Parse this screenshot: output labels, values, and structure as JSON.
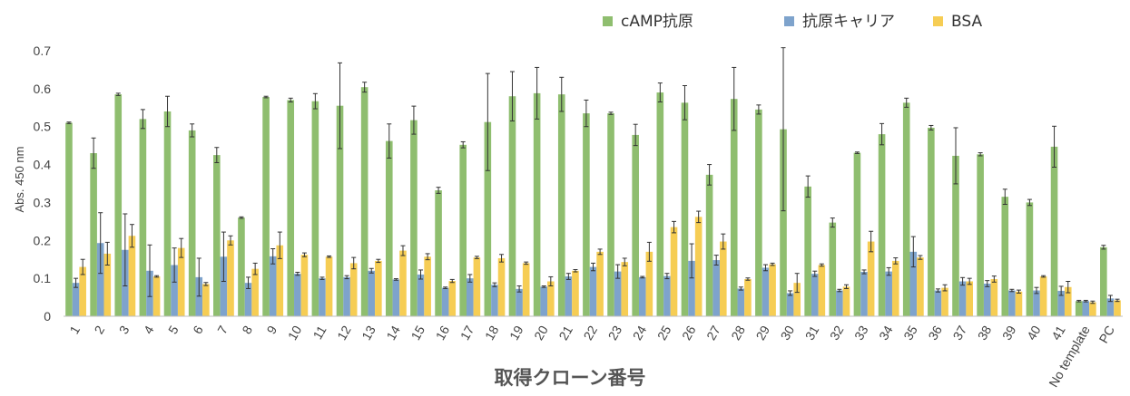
{
  "chart_data": {
    "type": "bar",
    "title": "",
    "xlabel": "取得クローン番号",
    "ylabel": "Abs. 450 nm",
    "ylim": [
      0,
      0.7
    ],
    "yticks": [
      "0",
      "0.1",
      "0.2",
      "0.3",
      "0.4",
      "0.5",
      "0.6",
      "0.7"
    ],
    "legend_position": "top-right",
    "grid": false,
    "error_bars": true,
    "categories": [
      "1",
      "2",
      "3",
      "4",
      "5",
      "6",
      "7",
      "8",
      "9",
      "10",
      "11",
      "12",
      "13",
      "14",
      "15",
      "16",
      "17",
      "18",
      "19",
      "20",
      "21",
      "22",
      "23",
      "24",
      "25",
      "26",
      "27",
      "28",
      "29",
      "30",
      "31",
      "32",
      "33",
      "34",
      "35",
      "36",
      "37",
      "38",
      "39",
      "40",
      "41",
      "No template",
      "PC"
    ],
    "series": [
      {
        "name": "cAMP抗原",
        "color": "#8fbe6f",
        "values": [
          0.51,
          0.43,
          0.585,
          0.52,
          0.54,
          0.49,
          0.425,
          0.26,
          0.578,
          0.57,
          0.567,
          0.555,
          0.604,
          0.462,
          0.517,
          0.332,
          0.452,
          0.512,
          0.58,
          0.588,
          0.585,
          0.535,
          0.535,
          0.478,
          0.59,
          0.563,
          0.373,
          0.573,
          0.545,
          0.493,
          0.342,
          0.247,
          0.431,
          0.48,
          0.563,
          0.497,
          0.423,
          0.427,
          0.315,
          0.3,
          0.447,
          0.04,
          0.182
        ],
        "errors": [
          0.002,
          0.04,
          0.003,
          0.025,
          0.04,
          0.017,
          0.02,
          0.002,
          0.002,
          0.005,
          0.02,
          0.113,
          0.013,
          0.045,
          0.037,
          0.008,
          0.008,
          0.128,
          0.065,
          0.068,
          0.045,
          0.035,
          0.003,
          0.028,
          0.025,
          0.045,
          0.027,
          0.083,
          0.012,
          0.215,
          0.028,
          0.012,
          0.002,
          0.028,
          0.012,
          0.006,
          0.074,
          0.004,
          0.02,
          0.008,
          0.054,
          0.002,
          0.005
        ]
      },
      {
        "name": "抗原キャリア",
        "color": "#7ea3cc",
        "values": [
          0.088,
          0.193,
          0.175,
          0.12,
          0.135,
          0.103,
          0.157,
          0.088,
          0.158,
          0.112,
          0.1,
          0.103,
          0.12,
          0.097,
          0.11,
          0.075,
          0.1,
          0.083,
          0.072,
          0.078,
          0.105,
          0.13,
          0.118,
          0.103,
          0.106,
          0.146,
          0.148,
          0.073,
          0.128,
          0.061,
          0.112,
          0.068,
          0.117,
          0.118,
          0.17,
          0.068,
          0.092,
          0.086,
          0.068,
          0.068,
          0.067,
          0.04,
          0.047
        ],
        "errors": [
          0.012,
          0.08,
          0.095,
          0.068,
          0.045,
          0.05,
          0.065,
          0.015,
          0.02,
          0.004,
          0.003,
          0.004,
          0.006,
          0.002,
          0.012,
          0.002,
          0.01,
          0.005,
          0.008,
          0.002,
          0.008,
          0.01,
          0.018,
          0.002,
          0.007,
          0.045,
          0.013,
          0.004,
          0.008,
          0.006,
          0.007,
          0.003,
          0.005,
          0.01,
          0.04,
          0.004,
          0.01,
          0.008,
          0.003,
          0.008,
          0.012,
          0.002,
          0.008
        ]
      },
      {
        "name": "BSA",
        "color": "#f6cd54",
        "values": [
          0.13,
          0.165,
          0.212,
          0.105,
          0.18,
          0.085,
          0.2,
          0.125,
          0.187,
          0.162,
          0.157,
          0.14,
          0.146,
          0.173,
          0.157,
          0.093,
          0.155,
          0.153,
          0.14,
          0.092,
          0.12,
          0.17,
          0.143,
          0.17,
          0.235,
          0.262,
          0.197,
          0.098,
          0.137,
          0.088,
          0.135,
          0.078,
          0.197,
          0.146,
          0.155,
          0.075,
          0.092,
          0.098,
          0.065,
          0.105,
          0.077,
          0.037,
          0.042
        ],
        "errors": [
          0.02,
          0.03,
          0.03,
          0.002,
          0.025,
          0.004,
          0.012,
          0.015,
          0.035,
          0.005,
          0.002,
          0.015,
          0.004,
          0.013,
          0.008,
          0.004,
          0.003,
          0.01,
          0.003,
          0.012,
          0.003,
          0.007,
          0.01,
          0.025,
          0.015,
          0.015,
          0.02,
          0.003,
          0.003,
          0.025,
          0.003,
          0.005,
          0.027,
          0.008,
          0.005,
          0.008,
          0.008,
          0.008,
          0.004,
          0.002,
          0.015,
          0.003,
          0.003
        ]
      }
    ]
  }
}
